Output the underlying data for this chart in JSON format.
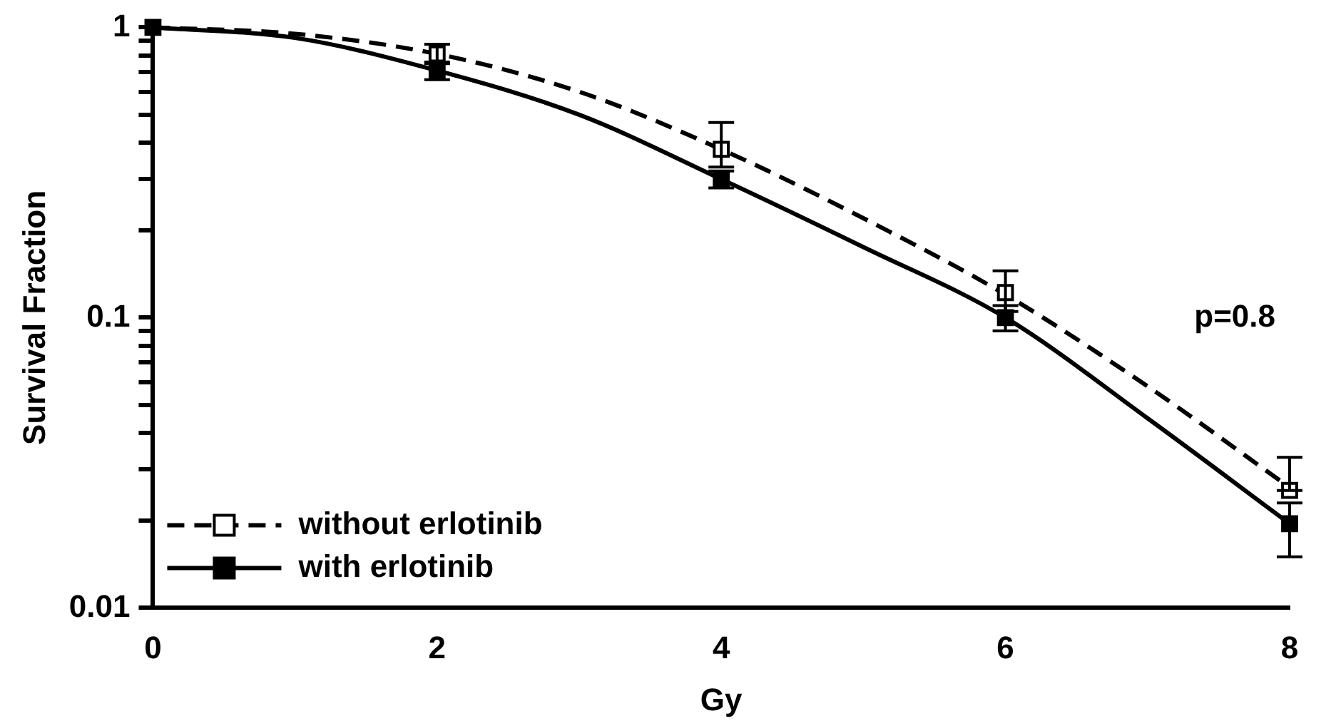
{
  "chart_data": {
    "type": "scatter",
    "xlabel": "Gy",
    "ylabel": "Survival Fraction",
    "log": "y",
    "grid": false,
    "legend": "bottom left",
    "xlim": [
      0,
      8
    ],
    "xticks": [
      0,
      2,
      4,
      6,
      8
    ],
    "ylim": [
      0.01,
      1
    ],
    "yticks": [
      0.01,
      {
        "value": 0.02,
        "label": null
      },
      {
        "value": 0.03,
        "label": null
      },
      {
        "value": 0.04,
        "label": null
      },
      {
        "value": 0.05,
        "label": null
      },
      {
        "value": 0.06,
        "label": null
      },
      {
        "value": 0.07,
        "label": null
      },
      {
        "value": 0.08,
        "label": null
      },
      {
        "value": 0.09,
        "label": null
      },
      0.1,
      {
        "value": 0.2,
        "label": null
      },
      {
        "value": 0.3,
        "label": null
      },
      {
        "value": 0.4,
        "label": null
      },
      {
        "value": 0.5,
        "label": null
      },
      {
        "value": 0.6,
        "label": null
      },
      {
        "value": 0.7,
        "label": null
      },
      {
        "value": 0.8,
        "label": null
      },
      {
        "value": 0.9,
        "label": null
      },
      1
    ],
    "annotations": [
      "p=0.8"
    ],
    "series": [
      {
        "type": "line",
        "name": "without erlotinib",
        "color": "#000000",
        "line_style": "dashed",
        "marker": "none",
        "x": [
          0,
          1,
          2,
          3,
          4,
          5,
          6,
          7,
          8
        ],
        "values": [
          1,
          0.95,
          0.81,
          0.6,
          0.38,
          0.22,
          0.12,
          0.058,
          0.026
        ]
      },
      {
        "type": "line",
        "name": "with erlotinib",
        "color": "#000000",
        "line_style": "solid",
        "marker": "none",
        "x": [
          0,
          1,
          2,
          3,
          4,
          5,
          6,
          7,
          8
        ],
        "values": [
          1,
          0.92,
          0.71,
          0.5,
          0.3,
          0.175,
          0.1,
          0.045,
          0.0195
        ]
      },
      {
        "color": "#ffffff",
        "marker": "square",
        "x": [
          2,
          4,
          6,
          8
        ],
        "values": [
          0.81,
          0.38,
          0.122,
          0.0254
        ],
        "errors": [
          [
            0.75,
            0.875
          ],
          [
            0.33,
            0.47
          ],
          [
            0.105,
            0.145
          ],
          [
            0.0254,
            0.033
          ]
        ]
      },
      {
        "color": "#000000",
        "marker": "square",
        "x": [
          0,
          2,
          4,
          6,
          8
        ],
        "values": [
          1,
          0.71,
          0.3,
          0.1,
          0.0195
        ],
        "errors": [
          null,
          [
            0.66,
            0.76
          ],
          [
            0.28,
            0.32
          ],
          [
            0.09,
            0.11
          ],
          [
            0.015,
            0.023
          ]
        ]
      }
    ]
  }
}
